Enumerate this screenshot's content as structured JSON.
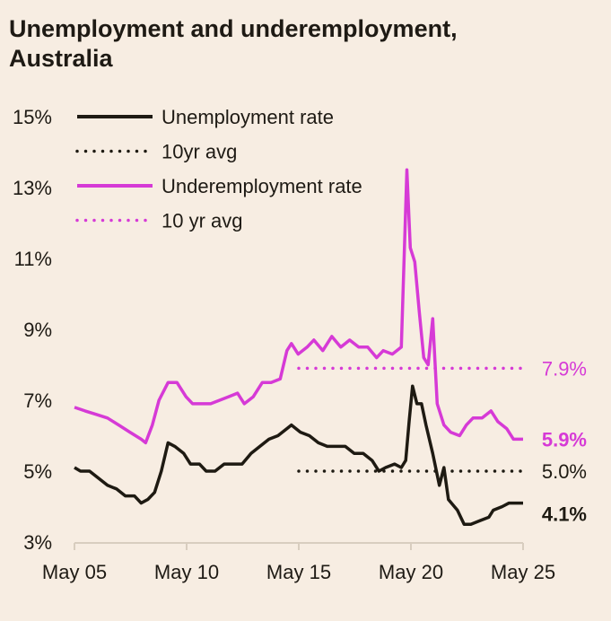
{
  "chart_data": {
    "type": "line",
    "title": "Unemployment and underemployment, Australia",
    "xlabel": "",
    "ylabel": "",
    "xlim": [
      2005.33,
      2025.33
    ],
    "ylim": [
      3,
      15
    ],
    "grid": false,
    "legend_placement": "top-left",
    "x_tick_labels": [
      "May 05",
      "May 10",
      "May 15",
      "May 20",
      "May 25"
    ],
    "x_tick_values": [
      2005.33,
      2010.33,
      2015.33,
      2020.33,
      2025.33
    ],
    "y_tick_labels": [
      "3%",
      "5%",
      "7%",
      "9%",
      "11%",
      "13%",
      "15%"
    ],
    "y_tick_values": [
      3,
      5,
      7,
      9,
      11,
      13,
      15
    ],
    "colors": {
      "unemployment": "#1e1a12",
      "underemployment": "#d63ad6",
      "background": "#f7ede2"
    },
    "series": [
      {
        "name": "Unemployment rate",
        "style": "solid",
        "end_label": "4.1%",
        "x": [
          2005.33,
          2005.6,
          2006.0,
          2006.4,
          2006.8,
          2007.2,
          2007.6,
          2008.0,
          2008.3,
          2008.6,
          2008.9,
          2009.2,
          2009.5,
          2009.8,
          2010.2,
          2010.5,
          2010.9,
          2011.2,
          2011.6,
          2012.0,
          2012.4,
          2012.8,
          2013.2,
          2013.6,
          2014.0,
          2014.4,
          2014.8,
          2015.0,
          2015.4,
          2015.8,
          2016.2,
          2016.6,
          2017.0,
          2017.4,
          2017.8,
          2018.2,
          2018.6,
          2018.9,
          2019.2,
          2019.6,
          2019.9,
          2020.1,
          2020.25,
          2020.4,
          2020.6,
          2020.8,
          2021.0,
          2021.3,
          2021.6,
          2021.8,
          2022.0,
          2022.4,
          2022.7,
          2023.0,
          2023.4,
          2023.8,
          2024.0,
          2024.4,
          2024.7,
          2025.0,
          2025.33
        ],
        "y": [
          5.1,
          5.0,
          5.0,
          4.8,
          4.6,
          4.5,
          4.3,
          4.3,
          4.1,
          4.2,
          4.4,
          5.0,
          5.8,
          5.7,
          5.5,
          5.2,
          5.2,
          5.0,
          5.0,
          5.2,
          5.2,
          5.2,
          5.5,
          5.7,
          5.9,
          6.0,
          6.2,
          6.3,
          6.1,
          6.0,
          5.8,
          5.7,
          5.7,
          5.7,
          5.5,
          5.5,
          5.3,
          5.0,
          5.1,
          5.2,
          5.1,
          5.3,
          6.4,
          7.4,
          6.9,
          6.9,
          6.3,
          5.5,
          4.6,
          5.1,
          4.2,
          3.9,
          3.5,
          3.5,
          3.6,
          3.7,
          3.9,
          4.0,
          4.1,
          4.1,
          4.1
        ]
      },
      {
        "name": "10yr avg",
        "style": "dotted",
        "end_label": "5.0%",
        "x": [
          2015.33,
          2025.33
        ],
        "y": [
          5.0,
          5.0
        ]
      },
      {
        "name": "Underemployment rate",
        "style": "solid",
        "end_label": "5.9%",
        "x": [
          2005.33,
          2005.8,
          2006.3,
          2006.8,
          2007.3,
          2007.8,
          2008.3,
          2008.5,
          2008.8,
          2009.1,
          2009.5,
          2009.9,
          2010.3,
          2010.6,
          2011.0,
          2011.4,
          2011.8,
          2012.2,
          2012.6,
          2012.9,
          2013.3,
          2013.7,
          2014.1,
          2014.5,
          2014.8,
          2015.0,
          2015.3,
          2015.7,
          2016.0,
          2016.4,
          2016.8,
          2017.2,
          2017.6,
          2018.0,
          2018.4,
          2018.8,
          2019.1,
          2019.5,
          2019.9,
          2020.15,
          2020.3,
          2020.5,
          2020.7,
          2020.9,
          2021.1,
          2021.3,
          2021.5,
          2021.8,
          2022.1,
          2022.5,
          2022.8,
          2023.1,
          2023.5,
          2023.9,
          2024.2,
          2024.6,
          2024.9,
          2025.33
        ],
        "y": [
          6.8,
          6.7,
          6.6,
          6.5,
          6.3,
          6.1,
          5.9,
          5.8,
          6.3,
          7.0,
          7.5,
          7.5,
          7.1,
          6.9,
          6.9,
          6.9,
          7.0,
          7.1,
          7.2,
          6.9,
          7.1,
          7.5,
          7.5,
          7.6,
          8.4,
          8.6,
          8.3,
          8.5,
          8.7,
          8.4,
          8.8,
          8.5,
          8.7,
          8.5,
          8.5,
          8.2,
          8.4,
          8.3,
          8.5,
          13.5,
          11.3,
          10.9,
          9.5,
          8.2,
          8.0,
          9.3,
          6.9,
          6.3,
          6.1,
          6.0,
          6.3,
          6.5,
          6.5,
          6.7,
          6.4,
          6.2,
          5.9,
          5.9
        ]
      },
      {
        "name": "10 yr avg",
        "style": "dotted",
        "end_label": "7.9%",
        "x": [
          2015.33,
          2025.33
        ],
        "y": [
          7.9,
          7.9
        ]
      }
    ]
  }
}
